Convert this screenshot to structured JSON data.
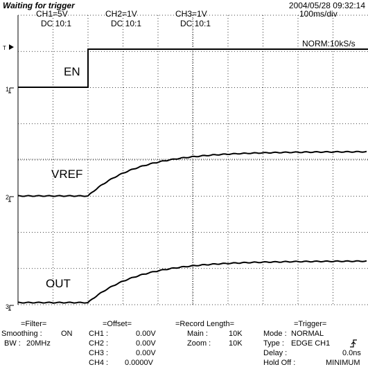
{
  "status": "Waiting for trigger",
  "datetime": "2004/05/28  09:32:14",
  "channels": [
    {
      "label": "CH1=5V",
      "coupling": "DC  10:1"
    },
    {
      "label": "CH2=1V",
      "coupling": "DC  10:1"
    },
    {
      "label": "CH3=1V",
      "coupling": "DC  10:1"
    }
  ],
  "timebase": "100ms/div",
  "acquisition": "NORM:10kS/s",
  "trace_labels": {
    "en": "EN",
    "vref": "VREF",
    "out": "OUT"
  },
  "markers": {
    "trigger": "T",
    "ch1": "1",
    "ch2": "2",
    "ch3": "3"
  },
  "filter": {
    "title": "=Filter=",
    "smoothing_label": "Smoothing :",
    "smoothing_value": "ON",
    "bw_label": "BW :",
    "bw_value": "20MHz"
  },
  "offset": {
    "title": "=Offset=",
    "rows": [
      {
        "label": "CH1 :",
        "value": "0.00V"
      },
      {
        "label": "CH2 :",
        "value": "0.00V"
      },
      {
        "label": "CH3 :",
        "value": "0.00V"
      },
      {
        "label": "CH4 :",
        "value": "0.0000V"
      }
    ]
  },
  "record": {
    "title": "=Record Length=",
    "main_label": "Main :",
    "main_value": "10K",
    "zoom_label": "Zoom :",
    "zoom_value": "10K"
  },
  "trigger": {
    "title": "=Trigger=",
    "mode_label": "Mode :",
    "mode_value": "NORMAL",
    "type_label": "Type :",
    "type_value": "EDGE CH1",
    "delay_label": "Delay :",
    "delay_value": "0.0ns",
    "holdoff_label": "Hold Off :",
    "holdoff_value": "MINIMUM"
  }
}
